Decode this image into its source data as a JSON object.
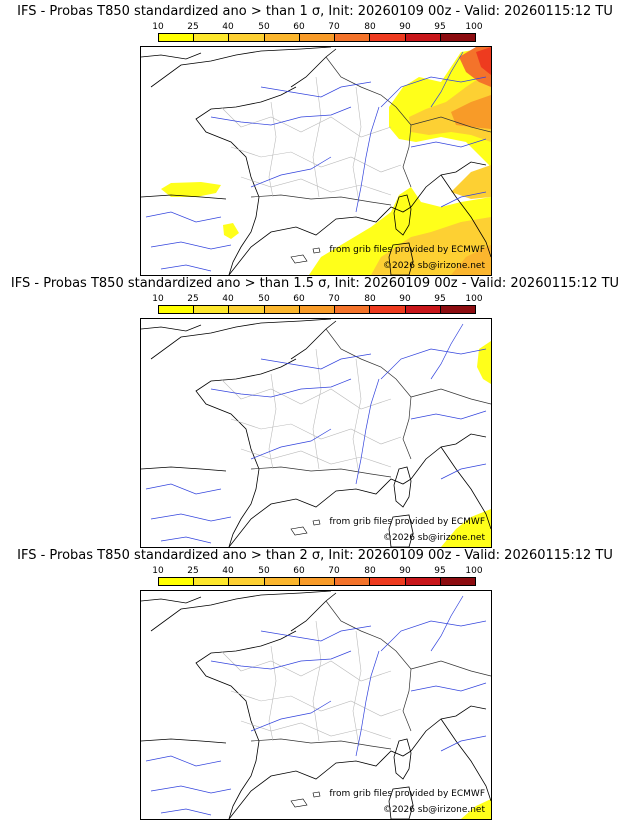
{
  "colorbar": {
    "ticks": [
      "10",
      "25",
      "40",
      "50",
      "60",
      "70",
      "80",
      "90",
      "95",
      "100"
    ],
    "colors": [
      "#ffff00",
      "#fde72c",
      "#fdd033",
      "#fbb62e",
      "#f89b28",
      "#f4732a",
      "#ee3b1f",
      "#c8161a",
      "#8c0c10"
    ]
  },
  "panels": [
    {
      "title": "IFS - Probas T850  standardized ano > than 1 σ, Init: 20260109 00z - Valid: 20260115:12 TU",
      "credit_source": "from grib files provided by ECMWF",
      "credit_site": "©2026 sb@irizone.net"
    },
    {
      "title": "IFS - Probas T850  standardized ano > than 1.5 σ, Init: 20260109 00z - Valid: 20260115:12 TU",
      "credit_source": "from grib files provided by ECMWF",
      "credit_site": "©2026 sb@irizone.net"
    },
    {
      "title": "IFS - Probas T850  standardized ano > than 2 σ, Init: 20260109 00z - Valid: 20260115:12 TU",
      "credit_source": "from grib files provided by ECMWF",
      "credit_site": "©2026 sb@irizone.net"
    }
  ]
}
